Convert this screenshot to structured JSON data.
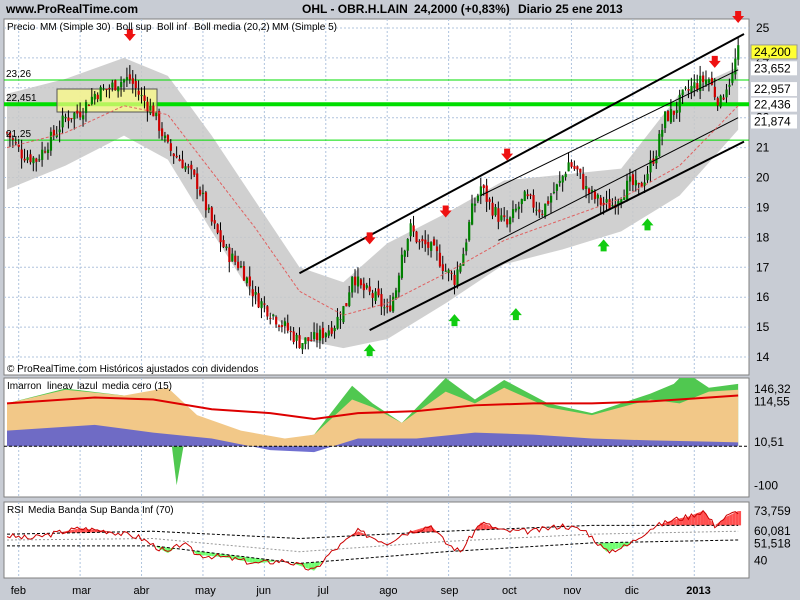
{
  "header": {
    "site": "www.ProRealTime.com",
    "title": "OHL - OBR.H.LAIN",
    "price_change": "24,2000 (+0,83%)",
    "period_date": "Diario  25 ene 2013"
  },
  "chart_data": [
    {
      "type": "candlestick",
      "legend": {
        "price": "Precio",
        "ma30": "MM (Simple 30)",
        "bb_up": "Boll sup",
        "bb_inf": "Boll inf",
        "bb_mid": "Boll media (20,2)",
        "ma5": "MM (Simple 5)"
      },
      "colors": {
        "up": "#008000",
        "down": "#cc0000",
        "ma30": "#e06060",
        "ma5": "#2020cc",
        "band": "#c8c8c8",
        "level": "#00dd00"
      },
      "y_ticks": [
        "25",
        "24",
        "23",
        "22",
        "21",
        "20",
        "19",
        "18",
        "17",
        "16",
        "15",
        "14"
      ],
      "ylim": [
        13.4,
        25.3
      ],
      "x_ticks": [
        "feb",
        "mar",
        "abr",
        "may",
        "jun",
        "jul",
        "ago",
        "sep",
        "oct",
        "nov",
        "dic",
        "2013"
      ],
      "levels": [
        {
          "value": 23.26,
          "label": "23,26"
        },
        {
          "value": 22.451,
          "label": "22,451"
        },
        {
          "value": 21.25,
          "label": "21,25"
        }
      ],
      "right_labels": [
        {
          "value": 24.2,
          "label": "24,200",
          "bg": "#ffff33",
          "color": "#000000"
        },
        {
          "value": 23.652,
          "label": "23,652",
          "bg": "#ffffff",
          "color": "#2020cc"
        },
        {
          "value": 22.957,
          "label": "22,957",
          "bg": "#ffffff",
          "color": "#aaaaaa"
        },
        {
          "value": 22.436,
          "label": "22,436",
          "bg": "#ffffff",
          "color": "#cc0000"
        },
        {
          "value": 21.874,
          "label": "21,874",
          "bg": "#ffffff",
          "color": "#aaaaaa"
        }
      ],
      "close_path": [
        [
          0,
          21.5
        ],
        [
          5,
          20.8
        ],
        [
          10,
          20.6
        ],
        [
          15,
          21.3
        ],
        [
          20,
          22.0
        ],
        [
          25,
          22.2
        ],
        [
          30,
          22.8
        ],
        [
          35,
          23.0
        ],
        [
          38,
          23.2
        ],
        [
          42,
          23.3
        ],
        [
          45,
          22.8
        ],
        [
          50,
          22.2
        ],
        [
          55,
          21.0
        ],
        [
          60,
          20.5
        ],
        [
          65,
          19.8
        ],
        [
          70,
          18.5
        ],
        [
          75,
          17.5
        ],
        [
          80,
          17.0
        ],
        [
          85,
          16.0
        ],
        [
          90,
          15.5
        ],
        [
          95,
          15.0
        ],
        [
          100,
          14.5
        ],
        [
          105,
          14.6
        ],
        [
          108,
          14.8
        ],
        [
          112,
          15.1
        ],
        [
          116,
          15.8
        ],
        [
          118,
          16.8
        ],
        [
          121,
          16.3
        ],
        [
          124,
          16.1
        ],
        [
          127,
          15.9
        ],
        [
          130,
          15.5
        ],
        [
          133,
          16.3
        ],
        [
          135,
          17.5
        ],
        [
          138,
          18.3
        ],
        [
          141,
          17.8
        ],
        [
          144,
          17.7
        ],
        [
          147,
          17.4
        ],
        [
          150,
          16.9
        ],
        [
          153,
          16.6
        ],
        [
          156,
          17.5
        ],
        [
          159,
          18.9
        ],
        [
          162,
          19.7
        ],
        [
          165,
          19.1
        ],
        [
          168,
          18.7
        ],
        [
          171,
          18.4
        ],
        [
          174,
          18.9
        ],
        [
          177,
          19.3
        ],
        [
          180,
          19.1
        ],
        [
          183,
          18.9
        ],
        [
          186,
          19.4
        ],
        [
          189,
          19.8
        ],
        [
          192,
          20.5
        ],
        [
          195,
          20.2
        ],
        [
          198,
          19.6
        ],
        [
          201,
          19.3
        ],
        [
          204,
          19.1
        ],
        [
          207,
          19.1
        ],
        [
          210,
          19.5
        ],
        [
          213,
          19.8
        ],
        [
          216,
          19.6
        ],
        [
          219,
          20.2
        ],
        [
          222,
          20.9
        ],
        [
          225,
          22.0
        ],
        [
          228,
          22.2
        ],
        [
          231,
          22.7
        ],
        [
          234,
          23.0
        ],
        [
          237,
          23.2
        ],
        [
          240,
          23.3
        ],
        [
          242,
          22.8
        ],
        [
          244,
          22.5
        ],
        [
          246,
          23.1
        ],
        [
          248,
          23.4
        ],
        [
          249,
          23.9
        ],
        [
          250,
          24.2
        ]
      ],
      "arrows_down": [
        [
          42,
          24.7
        ],
        [
          124,
          17.9
        ],
        [
          150,
          18.8
        ],
        [
          171,
          20.7
        ],
        [
          242,
          23.8
        ],
        [
          250,
          25.3
        ]
      ],
      "arrows_up": [
        [
          124,
          14.3
        ],
        [
          153,
          15.3
        ],
        [
          174,
          15.5
        ],
        [
          204,
          17.8
        ],
        [
          219,
          18.5
        ]
      ],
      "channel_lines": [
        {
          "from": [
            100,
            16.8
          ],
          "to": [
            252,
            24.8
          ],
          "width": 2,
          "color": "#000000"
        },
        {
          "from": [
            124,
            14.9
          ],
          "to": [
            252,
            21.2
          ],
          "width": 2,
          "color": "#000000"
        },
        {
          "from": [
            162,
            19.4
          ],
          "to": [
            250,
            23.6
          ],
          "width": 1,
          "color": "#000000"
        },
        {
          "from": [
            168,
            17.9
          ],
          "to": [
            250,
            22.0
          ],
          "width": 1,
          "color": "#000000"
        }
      ],
      "ma30_path": [
        [
          0,
          21.0
        ],
        [
          20,
          21.5
        ],
        [
          40,
          22.4
        ],
        [
          55,
          22.1
        ],
        [
          70,
          20.2
        ],
        [
          85,
          18.3
        ],
        [
          100,
          16.2
        ],
        [
          115,
          15.4
        ],
        [
          130,
          15.8
        ],
        [
          150,
          16.8
        ],
        [
          170,
          17.9
        ],
        [
          190,
          18.6
        ],
        [
          210,
          19.3
        ],
        [
          230,
          20.4
        ],
        [
          250,
          22.4
        ]
      ],
      "band_upper": [
        [
          0,
          22.8
        ],
        [
          20,
          23.3
        ],
        [
          40,
          24.0
        ],
        [
          55,
          23.4
        ],
        [
          70,
          21.4
        ],
        [
          85,
          19.2
        ],
        [
          100,
          17.0
        ],
        [
          115,
          16.5
        ],
        [
          130,
          17.8
        ],
        [
          150,
          18.8
        ],
        [
          170,
          19.9
        ],
        [
          190,
          20.1
        ],
        [
          210,
          20.3
        ],
        [
          230,
          22.8
        ],
        [
          250,
          23.7
        ]
      ],
      "band_lower": [
        [
          0,
          19.6
        ],
        [
          20,
          20.4
        ],
        [
          40,
          21.4
        ],
        [
          55,
          20.6
        ],
        [
          70,
          18.2
        ],
        [
          85,
          15.9
        ],
        [
          100,
          14.6
        ],
        [
          115,
          14.3
        ],
        [
          130,
          14.6
        ],
        [
          150,
          15.8
        ],
        [
          170,
          17.1
        ],
        [
          190,
          17.6
        ],
        [
          210,
          18.2
        ],
        [
          230,
          19.4
        ],
        [
          250,
          21.6
        ]
      ],
      "footnote": "© ProRealTime.com  Históricos ajustados con dividendos"
    },
    {
      "type": "area",
      "legend": {
        "a": "Imarron",
        "b": "lineav",
        "c": "lazul",
        "d": "media",
        "e": "cero (15)"
      },
      "y_ticks": [
        "146,32",
        "114,55",
        "10,51",
        "-100"
      ],
      "tick_values": [
        146.32,
        114.55,
        10.51,
        -100
      ],
      "ylim": [
        -130,
        175
      ],
      "orange_path": [
        [
          0,
          110
        ],
        [
          20,
          145
        ],
        [
          40,
          130
        ],
        [
          55,
          150
        ],
        [
          65,
          80
        ],
        [
          80,
          40
        ],
        [
          95,
          20
        ],
        [
          105,
          30
        ],
        [
          118,
          120
        ],
        [
          125,
          100
        ],
        [
          135,
          60
        ],
        [
          150,
          140
        ],
        [
          160,
          110
        ],
        [
          170,
          150
        ],
        [
          185,
          100
        ],
        [
          200,
          80
        ],
        [
          210,
          100
        ],
        [
          220,
          120
        ],
        [
          230,
          110
        ],
        [
          240,
          140
        ],
        [
          250,
          145
        ]
      ],
      "green_path": [
        [
          0,
          110
        ],
        [
          20,
          148
        ],
        [
          40,
          130
        ],
        [
          55,
          85
        ],
        [
          58,
          -100
        ],
        [
          62,
          70
        ],
        [
          80,
          30
        ],
        [
          95,
          15
        ],
        [
          105,
          30
        ],
        [
          118,
          155
        ],
        [
          125,
          110
        ],
        [
          135,
          60
        ],
        [
          150,
          175
        ],
        [
          160,
          120
        ],
        [
          170,
          170
        ],
        [
          185,
          110
        ],
        [
          200,
          85
        ],
        [
          210,
          110
        ],
        [
          220,
          135
        ],
        [
          228,
          160
        ],
        [
          232,
          190
        ],
        [
          240,
          150
        ],
        [
          250,
          160
        ]
      ],
      "media_path": [
        [
          0,
          110
        ],
        [
          30,
          125
        ],
        [
          50,
          120
        ],
        [
          70,
          95
        ],
        [
          90,
          85
        ],
        [
          105,
          70
        ],
        [
          120,
          85
        ],
        [
          140,
          90
        ],
        [
          160,
          105
        ],
        [
          180,
          110
        ],
        [
          200,
          110
        ],
        [
          220,
          115
        ],
        [
          240,
          125
        ],
        [
          250,
          130
        ]
      ],
      "blue_path": [
        [
          0,
          40
        ],
        [
          30,
          55
        ],
        [
          50,
          35
        ],
        [
          70,
          20
        ],
        [
          90,
          -10
        ],
        [
          105,
          -15
        ],
        [
          120,
          20
        ],
        [
          140,
          20
        ],
        [
          160,
          35
        ],
        [
          180,
          30
        ],
        [
          200,
          20
        ],
        [
          220,
          15
        ],
        [
          240,
          12
        ],
        [
          250,
          10
        ]
      ],
      "colors": {
        "orange": "#f2c888",
        "green": "#50c850",
        "media": "#dd0000",
        "blue": "#6060cc"
      }
    },
    {
      "type": "line",
      "legend": {
        "rsi": "RSI",
        "media": "Media",
        "bands": "Banda Sup Banda Inf (70)"
      },
      "y_ticks": [
        "73,759",
        "60,081",
        "51,518",
        "40"
      ],
      "tick_values": [
        73.759,
        60.081,
        51.518,
        40
      ],
      "ylim": [
        28,
        80
      ],
      "rsi_path": [
        [
          0,
          57
        ],
        [
          8,
          55
        ],
        [
          15,
          58
        ],
        [
          25,
          62
        ],
        [
          35,
          60
        ],
        [
          45,
          56
        ],
        [
          55,
          45
        ],
        [
          60,
          52
        ],
        [
          65,
          44
        ],
        [
          75,
          42
        ],
        [
          85,
          38
        ],
        [
          95,
          40
        ],
        [
          105,
          33
        ],
        [
          110,
          44
        ],
        [
          120,
          60
        ],
        [
          125,
          56
        ],
        [
          130,
          52
        ],
        [
          135,
          58
        ],
        [
          145,
          64
        ],
        [
          150,
          52
        ],
        [
          155,
          46
        ],
        [
          162,
          66
        ],
        [
          170,
          60
        ],
        [
          180,
          60
        ],
        [
          190,
          64
        ],
        [
          198,
          60
        ],
        [
          205,
          46
        ],
        [
          212,
          50
        ],
        [
          220,
          62
        ],
        [
          228,
          68
        ],
        [
          233,
          70
        ],
        [
          238,
          74
        ],
        [
          242,
          64
        ],
        [
          246,
          70
        ],
        [
          250,
          73.8
        ]
      ],
      "band_upper_path": [
        [
          0,
          58
        ],
        [
          50,
          60
        ],
        [
          100,
          55
        ],
        [
          150,
          60
        ],
        [
          200,
          64
        ],
        [
          250,
          64
        ]
      ],
      "band_lower_path": [
        [
          0,
          50
        ],
        [
          50,
          50
        ],
        [
          100,
          38
        ],
        [
          150,
          46
        ],
        [
          200,
          52
        ],
        [
          250,
          54
        ]
      ],
      "media_path": [
        [
          0,
          54
        ],
        [
          50,
          55
        ],
        [
          100,
          46
        ],
        [
          150,
          53
        ],
        [
          200,
          58
        ],
        [
          250,
          60
        ]
      ],
      "colors": {
        "rsi": "#cc0000",
        "fill_hi": "#ff5050",
        "fill_lo": "#70ff70"
      }
    }
  ]
}
